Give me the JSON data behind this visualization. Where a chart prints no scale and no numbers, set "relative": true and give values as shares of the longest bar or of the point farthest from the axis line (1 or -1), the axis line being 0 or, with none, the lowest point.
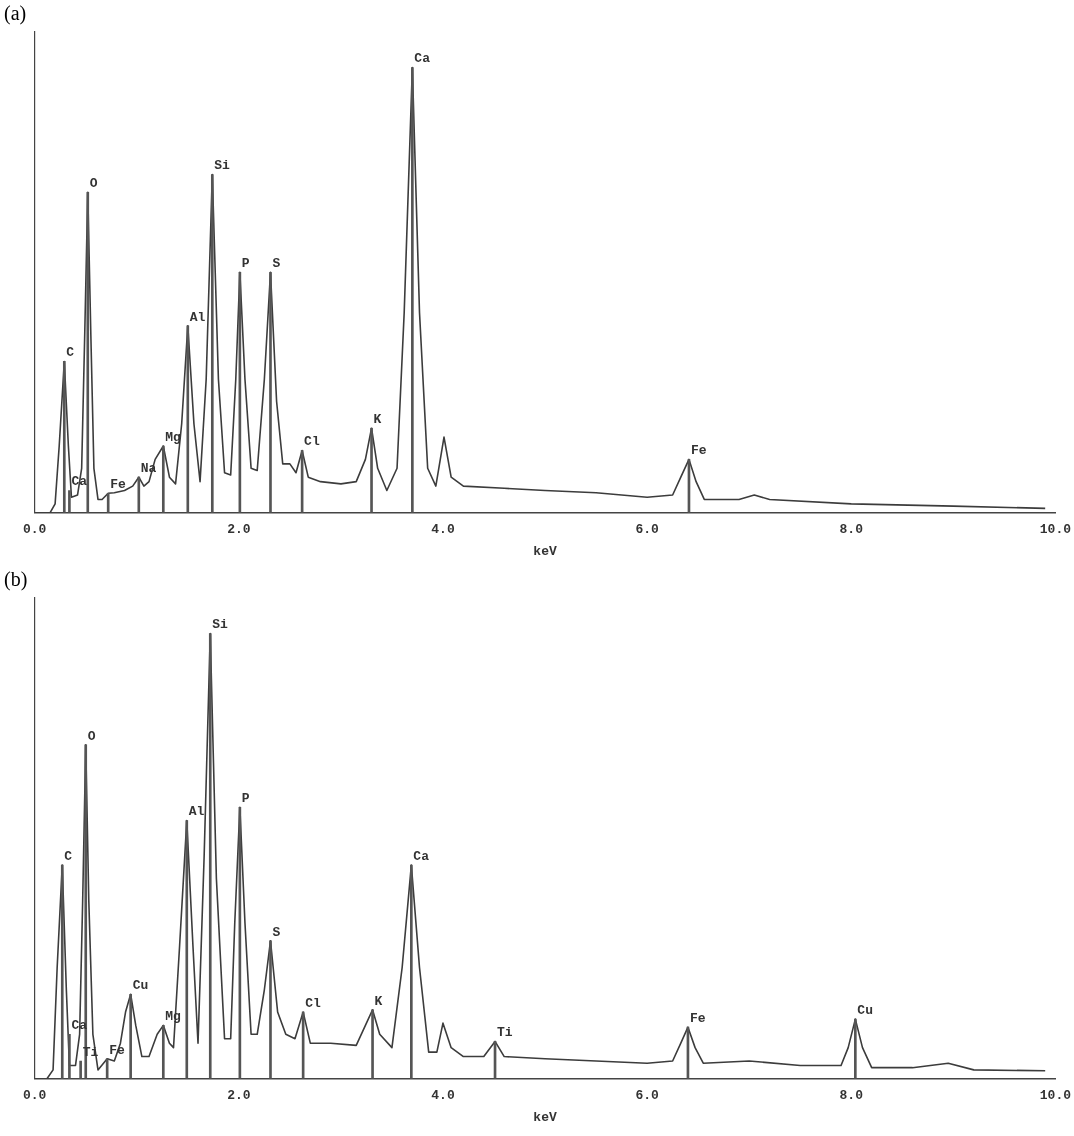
{
  "chart_data": [
    {
      "type": "line",
      "title": "(a)",
      "xlabel": "keV",
      "relative": true,
      "marker": "none",
      "grid": false,
      "legend": false,
      "xlim": [
        0,
        10
      ],
      "xticks": [
        {
          "value": 0,
          "label": "0.0"
        },
        {
          "value": 2,
          "label": "2.0"
        },
        {
          "value": 4,
          "label": "4.0"
        },
        {
          "value": 6,
          "label": "6.0"
        },
        {
          "value": 8,
          "label": "8.0"
        },
        {
          "value": 10,
          "label": "10.0"
        }
      ],
      "series": [
        {
          "color": "#3c3c3c",
          "x": [
            0,
            0.15,
            0.2,
            0.24,
            0.29,
            0.33,
            0.36,
            0.42,
            0.46,
            0.49,
            0.52,
            0.55,
            0.58,
            0.62,
            0.66,
            0.72,
            0.78,
            0.88,
            0.96,
            1.02,
            1.07,
            1.12,
            1.18,
            1.26,
            1.32,
            1.38,
            1.44,
            1.5,
            1.56,
            1.62,
            1.68,
            1.74,
            1.8,
            1.86,
            1.92,
            1.97,
            2.01,
            2.06,
            2.12,
            2.18,
            2.25,
            2.31,
            2.37,
            2.43,
            2.5,
            2.56,
            2.62,
            2.68,
            2.8,
            3.0,
            3.15,
            3.24,
            3.3,
            3.36,
            3.45,
            3.55,
            3.62,
            3.7,
            3.77,
            3.85,
            3.93,
            4.01,
            4.08,
            4.2,
            4.6,
            5.0,
            5.5,
            6.0,
            6.25,
            6.33,
            6.41,
            6.48,
            6.56,
            6.9,
            7.05,
            7.2,
            8.0,
            9.0,
            9.9
          ],
          "values": [
            0,
            0,
            0.02,
            0.15,
            0.34,
            0.15,
            0.035,
            0.04,
            0.1,
            0.4,
            0.72,
            0.4,
            0.1,
            0.03,
            0.03,
            0.044,
            0.045,
            0.05,
            0.06,
            0.08,
            0.06,
            0.07,
            0.12,
            0.15,
            0.08,
            0.065,
            0.2,
            0.42,
            0.2,
            0.07,
            0.3,
            0.76,
            0.3,
            0.09,
            0.085,
            0.3,
            0.54,
            0.3,
            0.1,
            0.095,
            0.3,
            0.54,
            0.25,
            0.11,
            0.11,
            0.09,
            0.14,
            0.08,
            0.07,
            0.065,
            0.07,
            0.12,
            0.19,
            0.1,
            0.05,
            0.1,
            0.45,
            1.0,
            0.45,
            0.1,
            0.06,
            0.17,
            0.08,
            0.06,
            0.055,
            0.05,
            0.045,
            0.035,
            0.04,
            0.08,
            0.12,
            0.07,
            0.03,
            0.03,
            0.04,
            0.03,
            0.02,
            0.015,
            0.01
          ]
        },
        {
          "type": "bar",
          "color": "#555555",
          "x": [
            0.29,
            0.34,
            0.52,
            0.72,
            1.02,
            1.26,
            1.5,
            1.74,
            2.01,
            2.31,
            2.62,
            3.3,
            3.7,
            6.41
          ],
          "values": [
            0.34,
            0.05,
            0.72,
            0.044,
            0.08,
            0.15,
            0.42,
            0.76,
            0.54,
            0.54,
            0.14,
            0.19,
            1.0,
            0.12
          ]
        }
      ],
      "annotations": [
        {
          "text": "C",
          "x": 0.29,
          "y": 0.34
        },
        {
          "text": "Ca",
          "x": 0.34,
          "y": 0.05
        },
        {
          "text": "O",
          "x": 0.52,
          "y": 0.72
        },
        {
          "text": "Fe",
          "x": 0.72,
          "y": 0.044
        },
        {
          "text": "Na",
          "x": 1.02,
          "y": 0.08
        },
        {
          "text": "Mg",
          "x": 1.26,
          "y": 0.15
        },
        {
          "text": "Al",
          "x": 1.5,
          "y": 0.42
        },
        {
          "text": "Si",
          "x": 1.74,
          "y": 0.76
        },
        {
          "text": "P",
          "x": 2.01,
          "y": 0.54
        },
        {
          "text": "S",
          "x": 2.31,
          "y": 0.54
        },
        {
          "text": "Cl",
          "x": 2.62,
          "y": 0.14
        },
        {
          "text": "K",
          "x": 3.3,
          "y": 0.19
        },
        {
          "text": "Ca",
          "x": 3.7,
          "y": 1.0
        },
        {
          "text": "Fe",
          "x": 6.41,
          "y": 0.12
        }
      ]
    },
    {
      "type": "line",
      "title": "(b)",
      "xlabel": "keV",
      "relative": true,
      "marker": "none",
      "grid": false,
      "legend": false,
      "xlim": [
        0,
        10
      ],
      "xticks": [
        {
          "value": 0,
          "label": "0.0"
        },
        {
          "value": 2,
          "label": "2.0"
        },
        {
          "value": 4,
          "label": "4.0"
        },
        {
          "value": 6,
          "label": "6.0"
        },
        {
          "value": 8,
          "label": "8.0"
        },
        {
          "value": 10,
          "label": "10.0"
        }
      ],
      "series": [
        {
          "color": "#3c3c3c",
          "x": [
            0,
            0.12,
            0.18,
            0.22,
            0.27,
            0.31,
            0.34,
            0.4,
            0.44,
            0.47,
            0.5,
            0.53,
            0.57,
            0.62,
            0.71,
            0.78,
            0.84,
            0.89,
            0.94,
            0.99,
            1.05,
            1.12,
            1.2,
            1.26,
            1.32,
            1.36,
            1.42,
            1.49,
            1.55,
            1.6,
            1.66,
            1.72,
            1.78,
            1.86,
            1.92,
            1.96,
            2.01,
            2.06,
            2.12,
            2.18,
            2.25,
            2.31,
            2.38,
            2.46,
            2.55,
            2.63,
            2.7,
            2.9,
            3.15,
            3.24,
            3.31,
            3.38,
            3.5,
            3.6,
            3.69,
            3.77,
            3.86,
            3.94,
            4.0,
            4.08,
            4.2,
            4.4,
            4.51,
            4.6,
            5.0,
            5.5,
            6.0,
            6.25,
            6.33,
            6.4,
            6.47,
            6.55,
            7.0,
            7.5,
            7.9,
            7.97,
            8.04,
            8.11,
            8.2,
            8.6,
            8.95,
            9.2,
            9.9
          ],
          "values": [
            0,
            0,
            0.02,
            0.25,
            0.48,
            0.2,
            0.03,
            0.03,
            0.1,
            0.4,
            0.75,
            0.4,
            0.1,
            0.02,
            0.045,
            0.04,
            0.08,
            0.15,
            0.19,
            0.12,
            0.05,
            0.05,
            0.1,
            0.12,
            0.08,
            0.07,
            0.3,
            0.58,
            0.3,
            0.08,
            0.5,
            1.0,
            0.45,
            0.09,
            0.09,
            0.35,
            0.61,
            0.35,
            0.1,
            0.1,
            0.2,
            0.31,
            0.15,
            0.1,
            0.09,
            0.15,
            0.08,
            0.08,
            0.075,
            0.12,
            0.155,
            0.1,
            0.07,
            0.25,
            0.48,
            0.25,
            0.06,
            0.06,
            0.125,
            0.07,
            0.05,
            0.05,
            0.084,
            0.05,
            0.045,
            0.04,
            0.035,
            0.04,
            0.08,
            0.116,
            0.07,
            0.035,
            0.04,
            0.03,
            0.03,
            0.07,
            0.134,
            0.07,
            0.025,
            0.025,
            0.035,
            0.02,
            0.018
          ]
        },
        {
          "type": "bar",
          "color": "#555555",
          "x": [
            0.27,
            0.34,
            0.45,
            0.5,
            0.71,
            0.94,
            1.26,
            1.49,
            1.72,
            2.01,
            2.31,
            2.63,
            3.31,
            3.69,
            4.51,
            6.4,
            8.04
          ],
          "values": [
            0.48,
            0.1,
            0.04,
            0.75,
            0.045,
            0.19,
            0.12,
            0.58,
            1.0,
            0.61,
            0.31,
            0.15,
            0.155,
            0.48,
            0.084,
            0.116,
            0.134
          ]
        }
      ],
      "annotations": [
        {
          "text": "C",
          "x": 0.27,
          "y": 0.48
        },
        {
          "text": "Ca",
          "x": 0.34,
          "y": 0.1
        },
        {
          "text": "Ti",
          "x": 0.45,
          "y": 0.04
        },
        {
          "text": "O",
          "x": 0.5,
          "y": 0.75
        },
        {
          "text": "Fe",
          "x": 0.71,
          "y": 0.045
        },
        {
          "text": "Cu",
          "x": 0.94,
          "y": 0.19
        },
        {
          "text": "Mg",
          "x": 1.26,
          "y": 0.12
        },
        {
          "text": "Al",
          "x": 1.49,
          "y": 0.58
        },
        {
          "text": "Si",
          "x": 1.72,
          "y": 1.0
        },
        {
          "text": "P",
          "x": 2.01,
          "y": 0.61
        },
        {
          "text": "S",
          "x": 2.31,
          "y": 0.31
        },
        {
          "text": "Cl",
          "x": 2.63,
          "y": 0.15
        },
        {
          "text": "K",
          "x": 3.31,
          "y": 0.155
        },
        {
          "text": "Ca",
          "x": 3.69,
          "y": 0.48
        },
        {
          "text": "Ti",
          "x": 4.51,
          "y": 0.084
        },
        {
          "text": "Fe",
          "x": 6.4,
          "y": 0.116
        },
        {
          "text": "Cu",
          "x": 8.04,
          "y": 0.134
        }
      ]
    }
  ]
}
